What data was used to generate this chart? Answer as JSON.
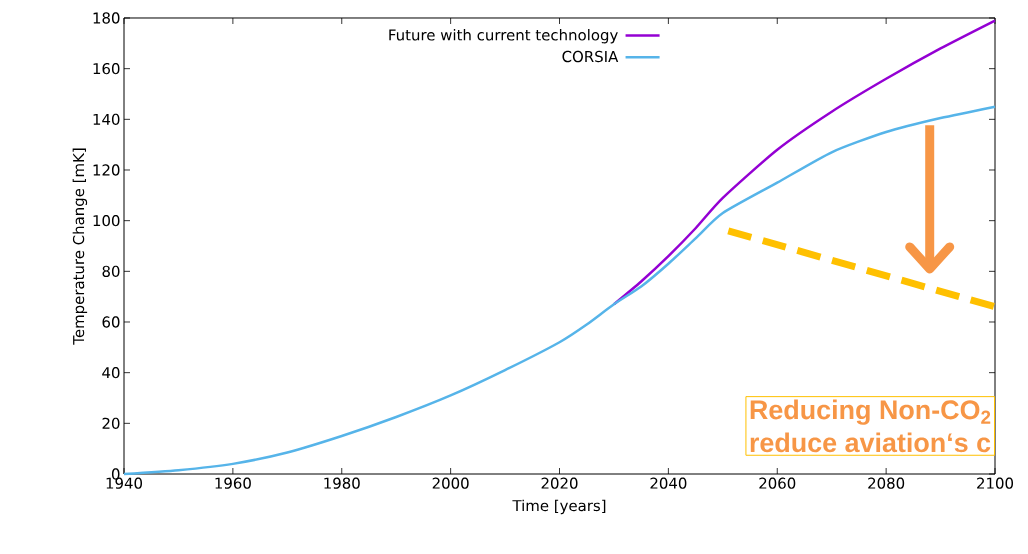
{
  "chart_data": {
    "type": "line",
    "xlabel": "Time [years]",
    "ylabel": "Temperature Change [mK]",
    "xlim": [
      1940,
      2100
    ],
    "ylim": [
      0,
      180
    ],
    "xticks": [
      1940,
      1960,
      1980,
      2000,
      2020,
      2040,
      2060,
      2080,
      2100
    ],
    "yticks": [
      0,
      20,
      40,
      60,
      80,
      100,
      120,
      140,
      160,
      180
    ],
    "legend": "top",
    "series": [
      {
        "name": "Future with current technology",
        "color": "#9400d3",
        "x": [
          2030,
          2035,
          2040,
          2045,
          2050,
          2060,
          2070,
          2080,
          2090,
          2100
        ],
        "values": [
          67,
          76,
          86,
          97,
          109,
          128,
          143,
          156,
          168,
          179
        ]
      },
      {
        "name": "CORSIA",
        "color": "#56b4e9",
        "x": [
          1940,
          1950,
          1960,
          1970,
          1980,
          1990,
          2000,
          2010,
          2020,
          2025,
          2030,
          2035,
          2040,
          2045,
          2050,
          2060,
          2070,
          2080,
          2090,
          2100
        ],
        "values": [
          0,
          1.5,
          4,
          8.5,
          15,
          22.5,
          31,
          41,
          52,
          59,
          67,
          74,
          83,
          93,
          103,
          115,
          127,
          135,
          140.5,
          145
        ]
      },
      {
        "type": "line",
        "color": "#ffc000",
        "line_style": "dashed",
        "x": [
          2051,
          2100
        ],
        "values": [
          96,
          66
        ]
      }
    ],
    "annotations": [
      "Reducing Non-CO$_{2}$",
      "reduce aviation‘s c"
    ]
  }
}
